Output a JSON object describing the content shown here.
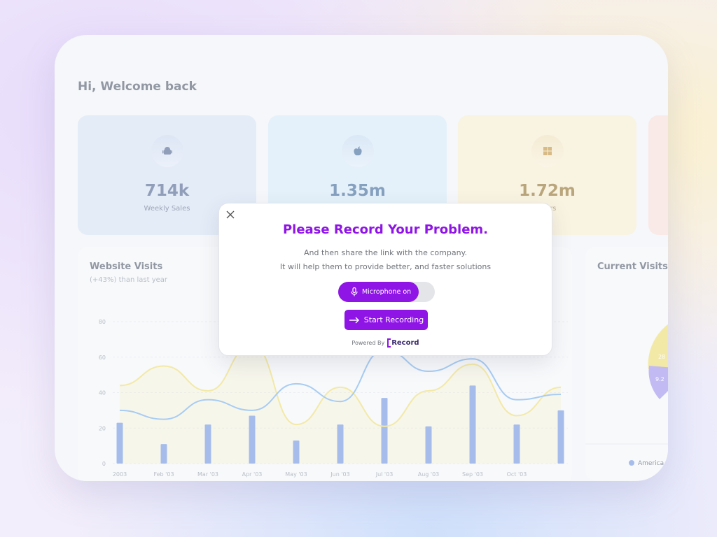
{
  "greeting": "Hi, Welcome back",
  "cards": [
    {
      "value": "714k",
      "label": "Weekly Sales",
      "icon": "android-icon",
      "bg": "#dbe7f7",
      "fg": "#5b6f99"
    },
    {
      "value": "1.35m",
      "label": "",
      "icon": "apple-icon",
      "bg": "#dbeefa",
      "fg": "#4b73a0"
    },
    {
      "value": "1.72m",
      "label": "rders",
      "icon": "windows-icon",
      "bg": "#fbf1d4",
      "fg": "#9a7b3a"
    },
    {
      "value": "",
      "label": "",
      "icon": "",
      "bg": "#fbe4de",
      "fg": "#9a5a4a"
    }
  ],
  "website_visits": {
    "title": "Website Visits",
    "subtitle": "(+43%) than last year"
  },
  "current_visits": {
    "title": "Current Visits",
    "slice_labels": [
      "28",
      "9.2"
    ],
    "legend": [
      "America"
    ]
  },
  "chart_data": {
    "type": "bar",
    "categories": [
      "2003",
      "Feb '03",
      "Mar '03",
      "Apr '03",
      "May '03",
      "Jun '03",
      "Jul '03",
      "Aug '03",
      "Sep '03",
      "Oct '03",
      ""
    ],
    "y_ticks": [
      "0",
      "20",
      "40",
      "60",
      "80"
    ],
    "ylim": [
      0,
      80
    ],
    "series": [
      {
        "kind": "bar",
        "values": [
          23,
          11,
          22,
          27,
          13,
          22,
          37,
          21,
          44,
          22,
          30
        ],
        "color": "#7b9fe3"
      },
      {
        "kind": "area",
        "values": [
          44,
          55,
          41,
          67,
          22,
          43,
          21,
          41,
          56,
          27,
          43
        ],
        "color": "#f2e27a"
      },
      {
        "kind": "line",
        "values": [
          30,
          25,
          36,
          30,
          45,
          35,
          64,
          52,
          59,
          36,
          39
        ],
        "color": "#7fb6f0"
      }
    ]
  },
  "modal": {
    "title": "Please Record Your Problem.",
    "line1": "And then share the link with the company.",
    "line2": "It will help them to provide better, and faster solutions",
    "mic_label": "Microphone on",
    "start_label": "Start Recording",
    "powered_by": "Powered By",
    "brand": "Record"
  }
}
